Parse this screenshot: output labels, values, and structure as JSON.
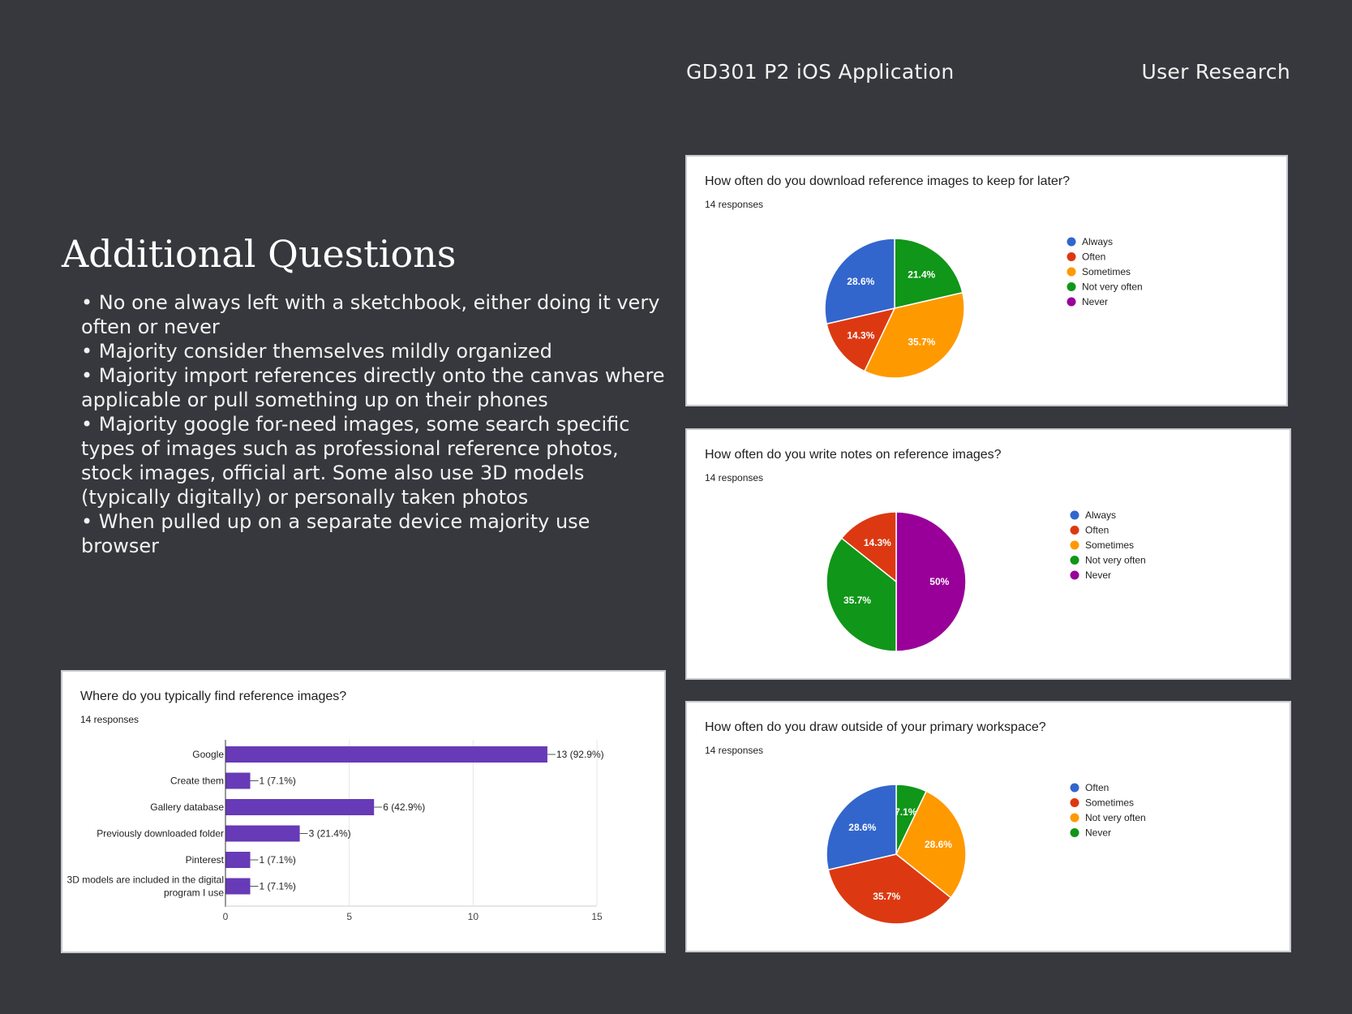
{
  "header": {
    "left": "GD301 P2 iOS Application",
    "right": "User Research"
  },
  "section": {
    "title": "Additional Questions",
    "bullets": [
      "No one always left with a sketchbook, either doing it very often or never",
      "Majority consider themselves mildly organized",
      "Majority import references directly onto the canvas where applicable or pull something up on their phones",
      "Majority google for-need images, some search specific types of images such as professional reference photos, stock images, official art. Some also use 3D models (typically digitally) or personally taken photos",
      "When pulled up on a separate device majority use browser"
    ]
  },
  "chart_data": [
    {
      "type": "pie",
      "title": "How often do you download reference images to keep for later?",
      "subtitle": "14 responses",
      "legend_position": "right",
      "categories": [
        "Always",
        "Often",
        "Sometimes",
        "Not very often",
        "Never"
      ],
      "values": [
        28.6,
        14.3,
        35.7,
        21.4,
        0
      ],
      "value_labels": [
        "28.6%",
        "14.3%",
        "35.7%",
        "21.4%",
        ""
      ],
      "colors": [
        "#3366cc",
        "#dc3912",
        "#ff9900",
        "#109618",
        "#990099"
      ]
    },
    {
      "type": "pie",
      "title": "How often do you write notes on reference images?",
      "subtitle": "14 responses",
      "legend_position": "right",
      "categories": [
        "Always",
        "Often",
        "Sometimes",
        "Not very often",
        "Never"
      ],
      "values": [
        0,
        14.3,
        0,
        35.7,
        50
      ],
      "value_labels": [
        "",
        "14.3%",
        "",
        "35.7%",
        "50%"
      ],
      "colors": [
        "#3366cc",
        "#dc3912",
        "#ff9900",
        "#109618",
        "#990099"
      ]
    },
    {
      "type": "pie",
      "title": "How often do you draw outside of your primary workspace?",
      "subtitle": "14 responses",
      "legend_position": "right",
      "categories": [
        "Often",
        "Sometimes",
        "Not very often",
        "Never"
      ],
      "values": [
        28.6,
        35.7,
        28.6,
        7.1
      ],
      "value_labels": [
        "28.6%",
        "35.7%",
        "28.6%",
        "7.1%"
      ],
      "colors": [
        "#3366cc",
        "#dc3912",
        "#ff9900",
        "#109618"
      ]
    },
    {
      "type": "bar",
      "orientation": "horizontal",
      "title": "Where do you typically find reference images?",
      "subtitle": "14 responses",
      "categories": [
        "Google",
        "Create them",
        "Gallery database",
        "Previously downloaded folder",
        "Pinterest",
        "3D models are included in the digital program I use"
      ],
      "values": [
        13,
        1,
        6,
        3,
        1,
        1
      ],
      "value_labels": [
        "13 (92.9%)",
        "1 (7.1%)",
        "6 (42.9%)",
        "3 (21.4%)",
        "1 (7.1%)",
        "1 (7.1%)"
      ],
      "xlim": [
        0,
        15
      ],
      "xticks": [
        "0",
        "5",
        "10",
        "15"
      ],
      "grid": true,
      "color": "#673ab7"
    }
  ]
}
